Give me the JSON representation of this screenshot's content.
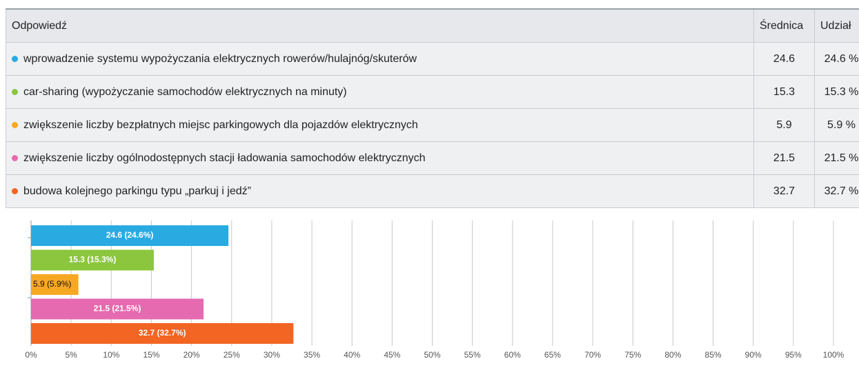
{
  "table": {
    "header": [
      "Odpowiedź",
      "Średnica",
      "Udział"
    ],
    "rows": [
      [
        "wprowadzenie systemu wypożyczania elektrycznych rowerów/hulajnóg/skuterów",
        "24.6",
        "24.6 %"
      ],
      [
        "car-sharing (wypożyczanie samochodów elektrycznych na minuty)",
        "15.3",
        "15.3 %"
      ],
      [
        "zwiększenie liczby bezpłatnych miejsc parkingowych dla pojazdów elektrycznych",
        "5.9",
        "5.9 %"
      ],
      [
        "zwiększenie liczby ogólnodostępnych stacji ładowania samochodów elektrycznych",
        "21.5",
        "21.5 %"
      ],
      [
        "budowa kolejnego parkingu typu „parkuj i jedź”",
        "32.7",
        "32.7 %"
      ]
    ]
  },
  "chart_data": {
    "type": "bar",
    "orientation": "horizontal",
    "values": [
      24.6,
      15.3,
      5.9,
      21.5,
      32.7
    ],
    "value_labels": [
      "24.6 (24.6%)",
      "15.3 (15.3%)",
      "5.9 (5.9%)",
      "21.5 (21.5%)",
      "32.7 (32.7%)"
    ],
    "colors": [
      "#29abe2",
      "#8cc63f",
      "#f7a823",
      "#e56aaf",
      "#f26522"
    ],
    "xlim": [
      0,
      100
    ],
    "xticks": [
      {
        "value": 0,
        "label": "0%"
      },
      {
        "value": 5,
        "label": "5%"
      },
      {
        "value": 10,
        "label": "10%"
      },
      {
        "value": 15,
        "label": "15%"
      },
      {
        "value": 20,
        "label": "20%"
      },
      {
        "value": 25,
        "label": "25%"
      },
      {
        "value": 30,
        "label": "30%"
      },
      {
        "value": 35,
        "label": "35%"
      },
      {
        "value": 40,
        "label": "40%"
      },
      {
        "value": 45,
        "label": "45%"
      },
      {
        "value": 50,
        "label": "50%"
      },
      {
        "value": 55,
        "label": "55%"
      },
      {
        "value": 60,
        "label": "60%"
      },
      {
        "value": 65,
        "label": "65%"
      },
      {
        "value": 70,
        "label": "70%"
      },
      {
        "value": 75,
        "label": "75%"
      },
      {
        "value": 80,
        "label": "80%"
      },
      {
        "value": 85,
        "label": "85%"
      },
      {
        "value": 90,
        "label": "90%"
      },
      {
        "value": 95,
        "label": "95%"
      },
      {
        "value": 100,
        "label": "100%"
      }
    ],
    "grid": true
  }
}
